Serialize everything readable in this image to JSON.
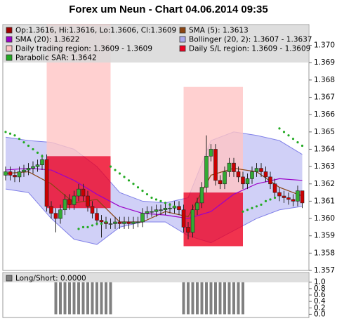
{
  "chart_data": [
    {
      "type": "candlestick",
      "title": "Forex um Neun - Chart 04.06.2014 09:35",
      "ylim": [
        1.357,
        1.3712
      ],
      "yticks": [
        1.357,
        1.358,
        1.359,
        {
          "value": 1.36,
          "label": "1.360"
        },
        1.361,
        1.362,
        1.363,
        1.364,
        1.365,
        1.366,
        1.367,
        1.368,
        1.369,
        {
          "value": 1.37,
          "label": "1.370"
        }
      ],
      "grid": false,
      "series": [
        {
          "name": "Op:1.3616, Hi:1.3616, Lo:1.3606, Cl:1.3609",
          "type": "candlestick",
          "color": "#a00000",
          "up_color": "#33aa33",
          "down_color": "#cc0000",
          "open": [
            1.3625,
            1.3627,
            1.3625,
            1.3624,
            1.3627,
            1.3628,
            1.3629,
            1.363,
            1.3631,
            1.3634,
            1.3607,
            1.3603,
            1.36,
            1.3605,
            1.3611,
            1.3608,
            1.3613,
            1.3617,
            1.3613,
            1.3607,
            1.3603,
            1.3599,
            1.3598,
            1.3597,
            1.3597,
            1.3598,
            1.3597,
            1.3598,
            1.3597,
            1.3598,
            1.3598,
            1.3603,
            1.3604,
            1.3604,
            1.3605,
            1.3605,
            1.3606,
            1.3606,
            1.3607,
            1.3605,
            1.3595,
            1.3592,
            1.3605,
            1.3609,
            1.3618,
            1.3636,
            1.364,
            1.3622,
            1.362,
            1.3627,
            1.3632,
            1.3627,
            1.3624,
            1.362,
            1.3623,
            1.3627,
            1.3629,
            1.3627,
            1.3624,
            1.362,
            1.3615,
            1.3613,
            1.3612,
            1.3611,
            1.361,
            1.3616
          ],
          "high": [
            1.363,
            1.363,
            1.3628,
            1.363,
            1.3631,
            1.3632,
            1.3633,
            1.3634,
            1.3637,
            1.3637,
            1.361,
            1.3606,
            1.3608,
            1.3614,
            1.3614,
            1.3616,
            1.362,
            1.362,
            1.3616,
            1.361,
            1.3606,
            1.3602,
            1.3601,
            1.36,
            1.3601,
            1.3601,
            1.3601,
            1.3601,
            1.3601,
            1.3601,
            1.3606,
            1.3607,
            1.3607,
            1.3608,
            1.3608,
            1.3609,
            1.3609,
            1.361,
            1.361,
            1.3608,
            1.3598,
            1.3608,
            1.3612,
            1.3621,
            1.3648,
            1.3643,
            1.3643,
            1.3625,
            1.363,
            1.3635,
            1.3635,
            1.363,
            1.3627,
            1.3626,
            1.363,
            1.3632,
            1.3632,
            1.363,
            1.3627,
            1.3623,
            1.3618,
            1.3616,
            1.3615,
            1.3614,
            1.3619,
            1.3616
          ],
          "low": [
            1.3622,
            1.3622,
            1.3621,
            1.3621,
            1.3624,
            1.3625,
            1.3626,
            1.3627,
            1.3628,
            1.3604,
            1.36,
            1.3592,
            1.3597,
            1.3602,
            1.3605,
            1.3605,
            1.361,
            1.361,
            1.3604,
            1.36,
            1.3596,
            1.3589,
            1.3594,
            1.3594,
            1.3594,
            1.3594,
            1.3594,
            1.3594,
            1.3594,
            1.3595,
            1.3595,
            1.36,
            1.3601,
            1.3601,
            1.3602,
            1.3602,
            1.3603,
            1.3603,
            1.3602,
            1.3592,
            1.3588,
            1.3589,
            1.3602,
            1.3606,
            1.3615,
            1.3633,
            1.3619,
            1.3617,
            1.3617,
            1.3624,
            1.3624,
            1.3621,
            1.3617,
            1.3617,
            1.362,
            1.3624,
            1.3624,
            1.3621,
            1.3617,
            1.3612,
            1.361,
            1.3609,
            1.3608,
            1.3607,
            1.3607,
            1.3606
          ],
          "close": [
            1.3627,
            1.3625,
            1.3624,
            1.3627,
            1.3628,
            1.3629,
            1.363,
            1.3631,
            1.3634,
            1.3607,
            1.3603,
            1.36,
            1.3605,
            1.3611,
            1.3608,
            1.3613,
            1.3617,
            1.3613,
            1.3607,
            1.3603,
            1.3599,
            1.3598,
            1.3597,
            1.3597,
            1.3598,
            1.3597,
            1.3598,
            1.3597,
            1.3598,
            1.3598,
            1.3603,
            1.3604,
            1.3604,
            1.3605,
            1.3605,
            1.3606,
            1.3606,
            1.3607,
            1.3605,
            1.3595,
            1.3592,
            1.3605,
            1.3609,
            1.3618,
            1.3636,
            1.364,
            1.3622,
            1.362,
            1.3627,
            1.3632,
            1.3627,
            1.3624,
            1.362,
            1.3623,
            1.3627,
            1.3629,
            1.3627,
            1.3624,
            1.362,
            1.3615,
            1.3613,
            1.3612,
            1.3611,
            1.361,
            1.3616,
            1.3609
          ]
        },
        {
          "name": "SMA (5): 1.3613",
          "type": "line",
          "color": "#8b4513",
          "x": [
            0,
            5,
            10,
            15,
            20,
            25,
            30,
            35,
            40,
            45,
            50,
            55,
            60,
            65
          ],
          "values": [
            1.3626,
            1.3627,
            1.362,
            1.3609,
            1.3611,
            1.3598,
            1.3598,
            1.3604,
            1.3601,
            1.3625,
            1.3629,
            1.3627,
            1.3618,
            1.3613
          ]
        },
        {
          "name": "SMA (20): 1.3622",
          "type": "line",
          "color": "#9b00c8",
          "x": [
            0,
            5,
            10,
            15,
            20,
            25,
            30,
            35,
            40,
            45,
            50,
            55,
            60,
            65
          ],
          "values": [
            1.3628,
            1.3629,
            1.3628,
            1.3622,
            1.3614,
            1.3607,
            1.3603,
            1.3602,
            1.36,
            1.3604,
            1.3614,
            1.362,
            1.3623,
            1.3622
          ]
        },
        {
          "name": "Bollinger (20, 2): 1.3607 - 1.3637",
          "type": "band",
          "color": "#aaaaf0",
          "x": [
            0,
            5,
            10,
            15,
            20,
            25,
            30,
            35,
            40,
            45,
            50,
            55,
            60,
            65
          ],
          "upper": [
            1.3647,
            1.3645,
            1.3644,
            1.364,
            1.363,
            1.3615,
            1.361,
            1.3609,
            1.3612,
            1.3645,
            1.365,
            1.3648,
            1.3645,
            1.3637
          ],
          "lower": [
            1.3617,
            1.3615,
            1.36,
            1.3588,
            1.3585,
            1.3595,
            1.3598,
            1.3598,
            1.359,
            1.3586,
            1.3593,
            1.36,
            1.3605,
            1.3607
          ]
        },
        {
          "name": "Daily trading region: 1.3609 - 1.3609",
          "type": "region",
          "color": "#ffc4c4",
          "start": [
            9,
            39
          ],
          "end": [
            23,
            52
          ],
          "low": [
            1.3636,
            1.3615
          ],
          "high": [
            1.3712,
            1.3676
          ]
        },
        {
          "name": "Daily S/L region: 1.3609 - 1.3609",
          "type": "region",
          "color": "#ee0022",
          "start": [
            9,
            39
          ],
          "end": [
            23,
            52
          ],
          "low": [
            1.3606,
            1.3584
          ],
          "high": [
            1.3636,
            1.3615
          ]
        },
        {
          "name": "Parabolic SAR: 1.3642",
          "type": "dots",
          "color": "#22aa22",
          "values": [
            1.365,
            1.3649,
            1.3648,
            1.3646,
            1.3644,
            1.3642,
            1.364,
            1.3638,
            1.3636,
            null,
            null,
            null,
            null,
            null,
            null,
            null,
            1.3594,
            1.3595,
            1.3595,
            1.3596,
            1.3597,
            1.3597,
            1.3598,
            1.363,
            1.3628,
            1.3626,
            1.3624,
            1.3622,
            1.362,
            1.3618,
            1.3616,
            1.3614,
            1.3612,
            1.3611,
            1.361,
            1.3609,
            1.3608,
            1.3607,
            null,
            null,
            null,
            null,
            null,
            null,
            null,
            null,
            null,
            null,
            null,
            null,
            null,
            null,
            1.3604,
            1.3605,
            1.3606,
            1.3607,
            1.3608,
            1.361,
            1.3611,
            1.3612,
            1.3652,
            1.365,
            1.3648,
            1.3646,
            1.3644,
            1.3642
          ]
        }
      ]
    },
    {
      "type": "bar",
      "ylim": [
        -0.1,
        1.3
      ],
      "yticks": [
        {
          "value": 0,
          "label": "0.0"
        },
        0.2,
        0.4,
        0.6,
        0.8,
        {
          "value": 1,
          "label": "1.0"
        }
      ],
      "grid": false,
      "series": [
        {
          "name": "Long/Short: 0.0000",
          "color": "#808080",
          "values": [
            0,
            0,
            0,
            0,
            0,
            0,
            0,
            0,
            0,
            0,
            0,
            1,
            1,
            1,
            1,
            1,
            1,
            1,
            1,
            1,
            1,
            1,
            1,
            1,
            0,
            0,
            0,
            0,
            0,
            0,
            0,
            0,
            0,
            0,
            0,
            0,
            0,
            0,
            0,
            1,
            1,
            1,
            1,
            1,
            1,
            1,
            1,
            1,
            1,
            1,
            1,
            1,
            1,
            0,
            0,
            0,
            0,
            0,
            0,
            0,
            0,
            0,
            0,
            0,
            0,
            0
          ]
        }
      ]
    }
  ]
}
